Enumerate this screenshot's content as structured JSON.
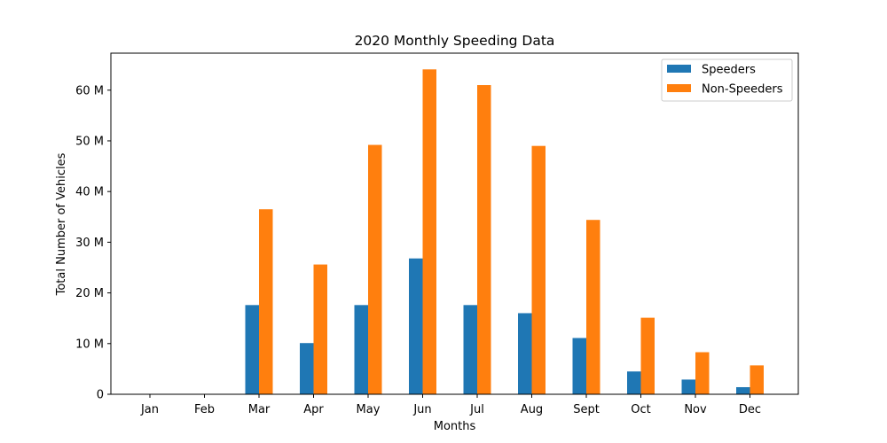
{
  "chart_data": {
    "type": "bar",
    "title": "2020 Monthly Speeding Data",
    "xlabel": "Months",
    "ylabel": "Total Number of Vehicles",
    "categories": [
      "Jan",
      "Feb",
      "Mar",
      "Apr",
      "May",
      "Jun",
      "Jul",
      "Aug",
      "Sept",
      "Oct",
      "Nov",
      "Dec"
    ],
    "series": [
      {
        "name": "Speeders",
        "color": "#1f77b4",
        "values": [
          0,
          0,
          17.6,
          10.1,
          17.6,
          26.8,
          17.6,
          16.0,
          11.1,
          4.5,
          2.9,
          1.4
        ]
      },
      {
        "name": "Non-Speeders",
        "color": "#ff7f0e",
        "values": [
          0,
          0,
          36.5,
          25.6,
          49.2,
          64.1,
          61.0,
          49.0,
          34.4,
          15.1,
          8.3,
          5.7
        ]
      }
    ],
    "ylim": [
      0,
      67.3
    ],
    "yticks": [
      0,
      10,
      20,
      30,
      40,
      50,
      60
    ],
    "ytick_labels": [
      "0",
      "10 M",
      "20 M",
      "30 M",
      "40 M",
      "50 M",
      "60 M"
    ],
    "grid": false,
    "legend_position": "top-right"
  }
}
